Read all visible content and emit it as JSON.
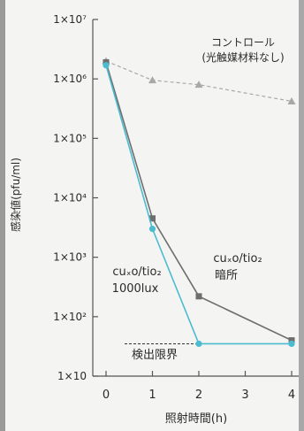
{
  "chart_data": {
    "type": "line",
    "ylabel": "感染値(pfu/ml)",
    "xlabel": "照射時間(h)",
    "y_scale": "log",
    "ylim": [
      10,
      10000000
    ],
    "x_ticks": [
      "0",
      "1",
      "2",
      "3",
      "4"
    ],
    "y_ticks": [
      {
        "value": 10,
        "label": "1×10"
      },
      {
        "value": 100,
        "label": "1×10²"
      },
      {
        "value": 1000,
        "label": "1×10³"
      },
      {
        "value": 10000,
        "label": "1×10⁴"
      },
      {
        "value": 100000,
        "label": "1×10⁵"
      },
      {
        "value": 1000000,
        "label": "1×10⁶"
      },
      {
        "value": 10000000,
        "label": "1×10⁷"
      }
    ],
    "grid": false,
    "series": [
      {
        "name": "コントロール(光触媒材料なし)",
        "label_lines": [
          "コントロール",
          "(光触媒材料なし)"
        ],
        "color": "#a8a8a8",
        "marker": "triangle",
        "dashed": true,
        "x": [
          0,
          1,
          2,
          4
        ],
        "y": [
          2000000,
          950000,
          800000,
          420000
        ]
      },
      {
        "name": "cuxo/tio₂ 暗所",
        "label_lines": [
          "cuₓo/tio₂",
          "暗所"
        ],
        "color": "#6e6e6e",
        "marker": "square",
        "dashed": false,
        "x": [
          0,
          1,
          2,
          4
        ],
        "y": [
          1900000,
          4500,
          220,
          40
        ]
      },
      {
        "name": "cuxo/tio₂ 1000lux",
        "label_lines": [
          "cuₓo/tio₂",
          "1000lux"
        ],
        "color": "#4bbcd0",
        "marker": "circle",
        "dashed": false,
        "x": [
          0,
          1,
          2,
          4
        ],
        "y": [
          1700000,
          3000,
          35,
          35
        ]
      }
    ],
    "detection_limit": {
      "label": "検出限界",
      "value": 35,
      "x_range": [
        0.4,
        4
      ]
    }
  }
}
